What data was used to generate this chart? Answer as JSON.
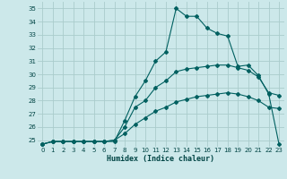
{
  "title": "",
  "xlabel": "Humidex (Indice chaleur)",
  "bg_color": "#cce8ea",
  "grid_color": "#aacccc",
  "line_color": "#006060",
  "ylim": [
    24.5,
    35.5
  ],
  "xlim": [
    -0.5,
    23.5
  ],
  "yticks": [
    25,
    26,
    27,
    28,
    29,
    30,
    31,
    32,
    33,
    34,
    35
  ],
  "xticks": [
    0,
    1,
    2,
    3,
    4,
    5,
    6,
    7,
    8,
    9,
    10,
    11,
    12,
    13,
    14,
    15,
    16,
    17,
    18,
    19,
    20,
    21,
    22,
    23
  ],
  "line1_x": [
    0,
    1,
    2,
    3,
    4,
    5,
    6,
    7,
    8,
    9,
    10,
    11,
    12,
    13,
    14,
    15,
    16,
    17,
    18,
    19,
    20,
    21,
    22,
    23
  ],
  "line1_y": [
    24.7,
    24.9,
    24.9,
    24.9,
    24.9,
    24.9,
    24.9,
    24.9,
    26.5,
    28.3,
    29.5,
    31.0,
    31.7,
    35.0,
    34.4,
    34.4,
    33.5,
    33.1,
    32.9,
    30.6,
    30.7,
    29.9,
    28.5,
    24.7
  ],
  "line2_x": [
    0,
    1,
    2,
    3,
    4,
    5,
    6,
    7,
    8,
    9,
    10,
    11,
    12,
    13,
    14,
    15,
    16,
    17,
    18,
    19,
    20,
    21,
    22,
    23
  ],
  "line2_y": [
    24.7,
    24.9,
    24.9,
    24.9,
    24.9,
    24.9,
    24.9,
    25.0,
    26.0,
    27.5,
    28.0,
    29.0,
    29.5,
    30.2,
    30.4,
    30.5,
    30.6,
    30.7,
    30.7,
    30.5,
    30.3,
    29.8,
    28.6,
    28.4
  ],
  "line3_x": [
    0,
    1,
    2,
    3,
    4,
    5,
    6,
    7,
    8,
    9,
    10,
    11,
    12,
    13,
    14,
    15,
    16,
    17,
    18,
    19,
    20,
    21,
    22,
    23
  ],
  "line3_y": [
    24.7,
    24.9,
    24.9,
    24.9,
    24.9,
    24.9,
    24.9,
    25.0,
    25.5,
    26.2,
    26.7,
    27.2,
    27.5,
    27.9,
    28.1,
    28.3,
    28.4,
    28.5,
    28.6,
    28.5,
    28.3,
    28.0,
    27.5,
    27.4
  ]
}
